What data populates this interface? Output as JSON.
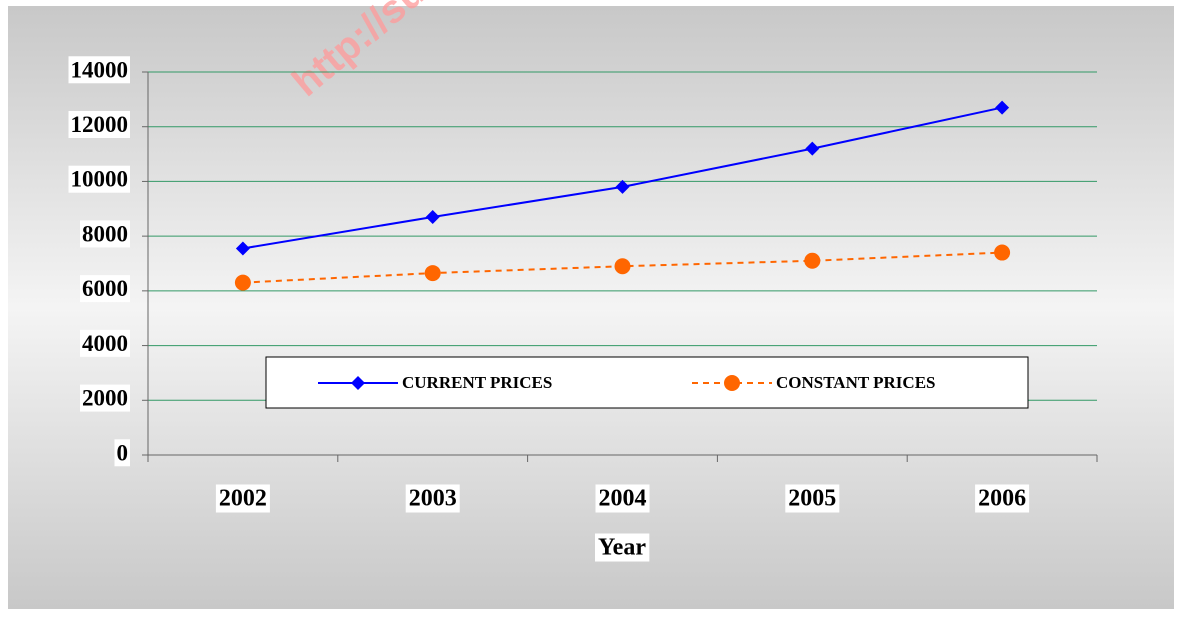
{
  "chart_data": {
    "type": "line",
    "watermark": "http://su",
    "categories": [
      "2002",
      "2003",
      "2004",
      "2005",
      "2006"
    ],
    "series": [
      {
        "name": "CURRENT PRICES",
        "color": "#0000ff",
        "dash": false,
        "marker": "diamond",
        "values": [
          7550,
          8700,
          9800,
          11200,
          12700
        ]
      },
      {
        "name": "CONSTANT PRICES",
        "color": "#ff6600",
        "dash": true,
        "marker": "circle",
        "values": [
          6300,
          6650,
          6900,
          7100,
          7400
        ]
      }
    ],
    "x_label": "Year",
    "ylim": [
      0,
      14000
    ],
    "yticks": [
      0,
      2000,
      4000,
      6000,
      8000,
      10000,
      12000,
      14000
    ],
    "grid": true,
    "grid_color": "#339966",
    "legend": "center"
  }
}
